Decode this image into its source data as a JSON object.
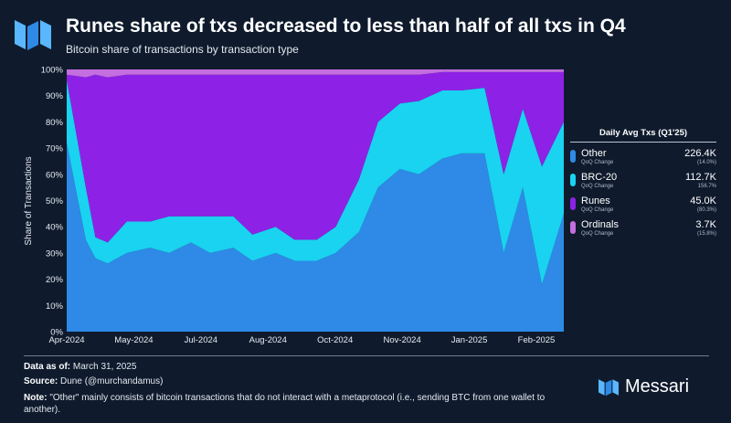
{
  "header": {
    "title": "Runes share of txs decreased to less than half of all txs in Q4",
    "subtitle": "Bitcoin share of transactions by transaction type"
  },
  "chart_data": {
    "type": "area",
    "stacked": true,
    "title": "Runes share of txs decreased to less than half of all txs in Q4",
    "subtitle": "Bitcoin share of transactions by transaction type",
    "ylabel": "Share of Transactions",
    "xlabel": "",
    "ylim": [
      0,
      100
    ],
    "y_ticks": [
      "0%",
      "10%",
      "20%",
      "30%",
      "40%",
      "50%",
      "60%",
      "70%",
      "80%",
      "90%",
      "100%"
    ],
    "x_ticks": [
      "Apr-2024",
      "May-2024",
      "Jul-2024",
      "Aug-2024",
      "Oct-2024",
      "Nov-2024",
      "Jan-2025",
      "Feb-2025"
    ],
    "x": [
      "2024-04-01",
      "2024-04-15",
      "2024-04-22",
      "2024-05-01",
      "2024-05-15",
      "2024-06-01",
      "2024-06-15",
      "2024-07-01",
      "2024-07-15",
      "2024-08-01",
      "2024-08-15",
      "2024-09-01",
      "2024-09-15",
      "2024-10-01",
      "2024-10-15",
      "2024-11-01",
      "2024-11-15",
      "2024-12-01",
      "2024-12-15",
      "2025-01-01",
      "2025-01-15",
      "2025-02-01",
      "2025-02-15",
      "2025-03-01",
      "2025-03-15",
      "2025-03-31"
    ],
    "series": [
      {
        "name": "Other",
        "color": "#2e8ae6",
        "values": [
          72,
          35,
          28,
          26,
          30,
          32,
          30,
          34,
          30,
          32,
          27,
          30,
          27,
          27,
          30,
          38,
          55,
          62,
          60,
          66,
          68,
          68,
          30,
          55,
          18,
          45
        ]
      },
      {
        "name": "BRC-20",
        "color": "#19d3f0",
        "values": [
          24,
          20,
          8,
          8,
          12,
          10,
          14,
          10,
          14,
          12,
          10,
          10,
          8,
          8,
          10,
          20,
          25,
          25,
          28,
          26,
          24,
          25,
          30,
          30,
          45,
          35
        ]
      },
      {
        "name": "Runes",
        "color": "#8d22e6",
        "values": [
          2,
          42,
          62,
          63,
          56,
          56,
          54,
          54,
          54,
          54,
          61,
          58,
          63,
          63,
          58,
          40,
          18,
          11,
          10,
          7,
          7,
          6,
          39,
          14,
          36,
          19
        ]
      },
      {
        "name": "Ordinals",
        "color": "#c46ee0",
        "values": [
          2,
          3,
          2,
          3,
          2,
          2,
          2,
          2,
          2,
          2,
          2,
          2,
          2,
          2,
          2,
          2,
          2,
          2,
          2,
          1,
          1,
          1,
          1,
          1,
          1,
          1
        ]
      }
    ],
    "legend_position": "right",
    "legend_title": "Daily Avg Txs (Q1'25)",
    "legend": [
      {
        "name": "Other",
        "qlabel": "QoQ Change",
        "value": "226.4K",
        "change": "(14.0%)",
        "color": "#2e8ae6"
      },
      {
        "name": "BRC-20",
        "qlabel": "QoQ Change",
        "value": "112.7K",
        "change": "156.7%",
        "color": "#19d3f0"
      },
      {
        "name": "Runes",
        "qlabel": "QoQ Change",
        "value": "45.0K",
        "change": "(80.3%)",
        "color": "#8d22e6"
      },
      {
        "name": "Ordinals",
        "qlabel": "QoQ Change",
        "value": "3.7K",
        "change": "(15.8%)",
        "color": "#c46ee0"
      }
    ],
    "grid": false
  },
  "footer": {
    "data_as_of_label": "Data as of:",
    "data_as_of_value": "March 31, 2025",
    "source_label": "Source:",
    "source_value": "Dune (@murchandamus)",
    "note_label": "Note:",
    "note_value": "\"Other\" mainly consists of bitcoin transactions that do not interact with a metaprotocol (i.e., sending BTC from one wallet to another)."
  },
  "brand": {
    "name": "Messari"
  },
  "colors": {
    "background": "#0f1b2d"
  }
}
